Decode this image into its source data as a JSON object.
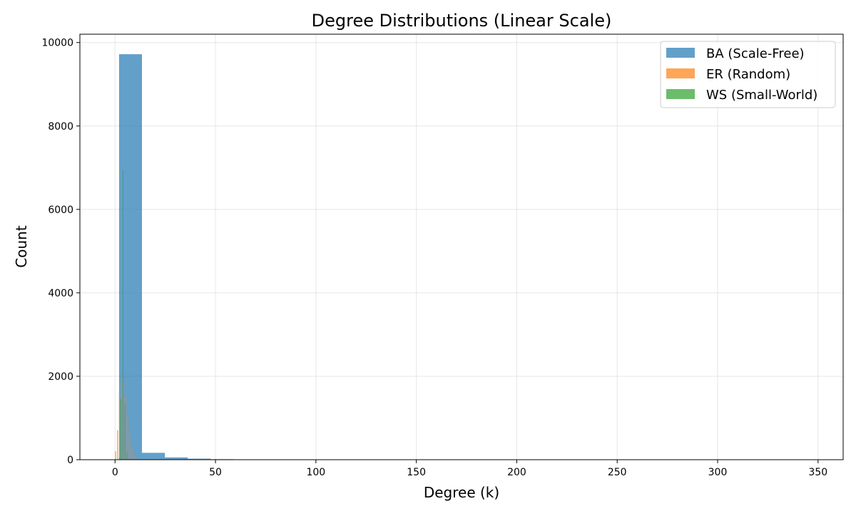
{
  "chart_data": {
    "type": "bar",
    "title": "Degree Distributions (Linear Scale)",
    "xlabel": "Degree (k)",
    "ylabel": "Count",
    "xlim": [
      -17.5,
      362.5
    ],
    "ylim": [
      0,
      10200
    ],
    "xticks": [
      0,
      50,
      100,
      150,
      200,
      250,
      300,
      350
    ],
    "xtick_labels": [
      "0",
      "50",
      "100",
      "150",
      "200",
      "250",
      "300",
      "350"
    ],
    "yticks": [
      0,
      2000,
      4000,
      6000,
      8000,
      10000
    ],
    "ytick_labels": [
      "0",
      "2000",
      "4000",
      "6000",
      "8000",
      "10000"
    ],
    "grid": true,
    "legend_position": "top-right",
    "series": [
      {
        "name": "BA (Scale-Free)",
        "color": "#1f77b4",
        "alpha": 0.7,
        "bins": [
          {
            "x0": 2.0,
            "x1": 13.4,
            "count": 9720
          },
          {
            "x0": 13.4,
            "x1": 24.8,
            "count": 165
          },
          {
            "x0": 24.8,
            "x1": 36.2,
            "count": 55
          },
          {
            "x0": 36.2,
            "x1": 47.6,
            "count": 25
          },
          {
            "x0": 47.6,
            "x1": 59.0,
            "count": 12
          },
          {
            "x0": 59.0,
            "x1": 70.4,
            "count": 6
          },
          {
            "x0": 70.4,
            "x1": 81.8,
            "count": 3
          },
          {
            "x0": 81.8,
            "x1": 93.2,
            "count": 2
          },
          {
            "x0": 93.2,
            "x1": 104.6,
            "count": 1
          },
          {
            "x0": 104.6,
            "x1": 116.0,
            "count": 1
          },
          {
            "x0": 116.0,
            "x1": 127.4,
            "count": 1
          },
          {
            "x0": 127.4,
            "x1": 138.8,
            "count": 1
          },
          {
            "x0": 138.8,
            "x1": 150.2,
            "count": 1
          }
        ]
      },
      {
        "name": "ER (Random)",
        "color": "#ff7f0e",
        "alpha": 0.7,
        "bins": [
          {
            "x0": 0.0,
            "x1": 0.5,
            "count": 200
          },
          {
            "x0": 1.0,
            "x1": 1.5,
            "count": 700
          },
          {
            "x0": 2.0,
            "x1": 2.5,
            "count": 1550
          },
          {
            "x0": 3.0,
            "x1": 3.5,
            "count": 1950
          },
          {
            "x0": 4.0,
            "x1": 4.5,
            "count": 1850
          },
          {
            "x0": 5.0,
            "x1": 5.5,
            "count": 1500
          },
          {
            "x0": 6.0,
            "x1": 6.5,
            "count": 1000
          },
          {
            "x0": 7.0,
            "x1": 7.5,
            "count": 600
          },
          {
            "x0": 8.0,
            "x1": 8.5,
            "count": 300
          },
          {
            "x0": 9.0,
            "x1": 9.5,
            "count": 150
          },
          {
            "x0": 10.0,
            "x1": 10.5,
            "count": 60
          },
          {
            "x0": 11.0,
            "x1": 11.5,
            "count": 25
          },
          {
            "x0": 12.0,
            "x1": 12.5,
            "count": 10
          }
        ]
      },
      {
        "name": "WS (Small-World)",
        "color": "#2ca02c",
        "alpha": 0.7,
        "bins": [
          {
            "x0": 2.0,
            "x1": 2.3,
            "count": 60
          },
          {
            "x0": 2.8,
            "x1": 3.1,
            "count": 1450
          },
          {
            "x0": 3.8,
            "x1": 4.1,
            "count": 6950
          },
          {
            "x0": 4.8,
            "x1": 5.1,
            "count": 1350
          },
          {
            "x0": 5.8,
            "x1": 6.1,
            "count": 170
          },
          {
            "x0": 6.8,
            "x1": 7.1,
            "count": 20
          }
        ]
      }
    ]
  }
}
